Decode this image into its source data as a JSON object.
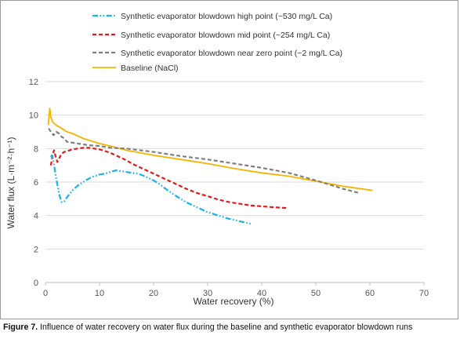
{
  "chart_data": {
    "type": "line",
    "xlabel": "Water recovery  (%)",
    "ylabel": "Water flux (L·m⁻²·h⁻¹)",
    "xlim": [
      0,
      70
    ],
    "ylim": [
      0,
      12
    ],
    "x_ticks": [
      0,
      10,
      20,
      30,
      40,
      50,
      60,
      70
    ],
    "y_ticks": [
      0,
      2,
      4,
      6,
      8,
      10,
      12
    ],
    "grid": "horizontal",
    "legend_position": "top",
    "series": [
      {
        "name": "Synthetic evaporator blowdown high point (~530 mg/L Ca)",
        "color": "#1ab2e8",
        "style": "dashdotdot",
        "x": [
          1.0,
          1.2,
          1.4,
          1.6,
          1.8,
          2.0,
          2.3,
          2.6,
          3.0,
          3.5,
          4,
          5,
          6,
          7,
          8,
          9,
          10,
          11,
          12,
          13,
          14,
          15,
          16,
          17,
          18,
          19,
          20,
          21,
          22,
          24,
          26,
          28,
          30,
          32,
          34,
          36,
          38
        ],
        "y": [
          7.5,
          7.6,
          7.4,
          7.0,
          6.6,
          6.2,
          5.7,
          5.2,
          4.8,
          4.85,
          5.1,
          5.5,
          5.8,
          6.0,
          6.2,
          6.35,
          6.45,
          6.5,
          6.6,
          6.7,
          6.65,
          6.6,
          6.55,
          6.5,
          6.4,
          6.25,
          6.1,
          5.9,
          5.65,
          5.2,
          4.8,
          4.5,
          4.2,
          4.0,
          3.8,
          3.65,
          3.5
        ]
      },
      {
        "name": "Synthetic evaporator blowdown mid point (~254 mg/L Ca)",
        "color": "#e31a1c",
        "style": "dashed",
        "x": [
          1.0,
          1.3,
          1.6,
          1.9,
          2.2,
          2.5,
          3,
          3.5,
          4,
          5,
          6,
          7,
          8,
          9,
          10,
          11,
          12,
          13,
          14,
          15,
          16,
          18,
          20,
          22,
          24,
          26,
          28,
          30,
          32,
          34,
          36,
          38,
          40,
          42,
          44.5
        ],
        "y": [
          7.0,
          7.6,
          7.9,
          7.5,
          7.2,
          7.4,
          7.7,
          7.8,
          7.85,
          7.95,
          8.0,
          8.05,
          8.05,
          8.0,
          7.95,
          7.85,
          7.75,
          7.6,
          7.45,
          7.3,
          7.1,
          6.8,
          6.5,
          6.2,
          5.9,
          5.6,
          5.35,
          5.15,
          4.95,
          4.8,
          4.7,
          4.6,
          4.55,
          4.5,
          4.45
        ]
      },
      {
        "name": "Synthetic evaporator blowdown near zero point (~2 mg/L Ca)",
        "color": "#808080",
        "style": "dashed",
        "x": [
          0.6,
          1.0,
          1.5,
          2.0,
          2.5,
          3.0,
          3.5,
          4,
          6,
          8,
          10,
          12,
          15,
          20,
          25,
          30,
          35,
          40,
          45,
          50,
          55,
          58
        ],
        "y": [
          9.2,
          9.0,
          8.8,
          9.0,
          8.9,
          8.7,
          8.6,
          8.4,
          8.3,
          8.2,
          8.15,
          8.05,
          8.0,
          7.8,
          7.55,
          7.35,
          7.1,
          6.85,
          6.55,
          6.1,
          5.6,
          5.35
        ]
      },
      {
        "name": "Baseline (NaCl)",
        "color": "#f5b400",
        "style": "solid",
        "x": [
          0.5,
          0.8,
          1.0,
          1.3,
          1.6,
          2,
          2.5,
          3,
          4,
          5,
          6,
          7,
          8,
          10,
          12,
          15,
          20,
          25,
          30,
          35,
          40,
          45,
          50,
          55,
          60.5
        ],
        "y": [
          9.4,
          10.4,
          9.9,
          9.6,
          9.5,
          9.4,
          9.3,
          9.2,
          9.0,
          8.9,
          8.75,
          8.6,
          8.5,
          8.3,
          8.15,
          7.9,
          7.6,
          7.35,
          7.1,
          6.8,
          6.55,
          6.35,
          6.05,
          5.75,
          5.5
        ]
      }
    ]
  },
  "caption": {
    "label": "Figure 7.",
    "text": " Influence of water recovery on water flux during the baseline and synthetic evaporator blowdown runs"
  }
}
